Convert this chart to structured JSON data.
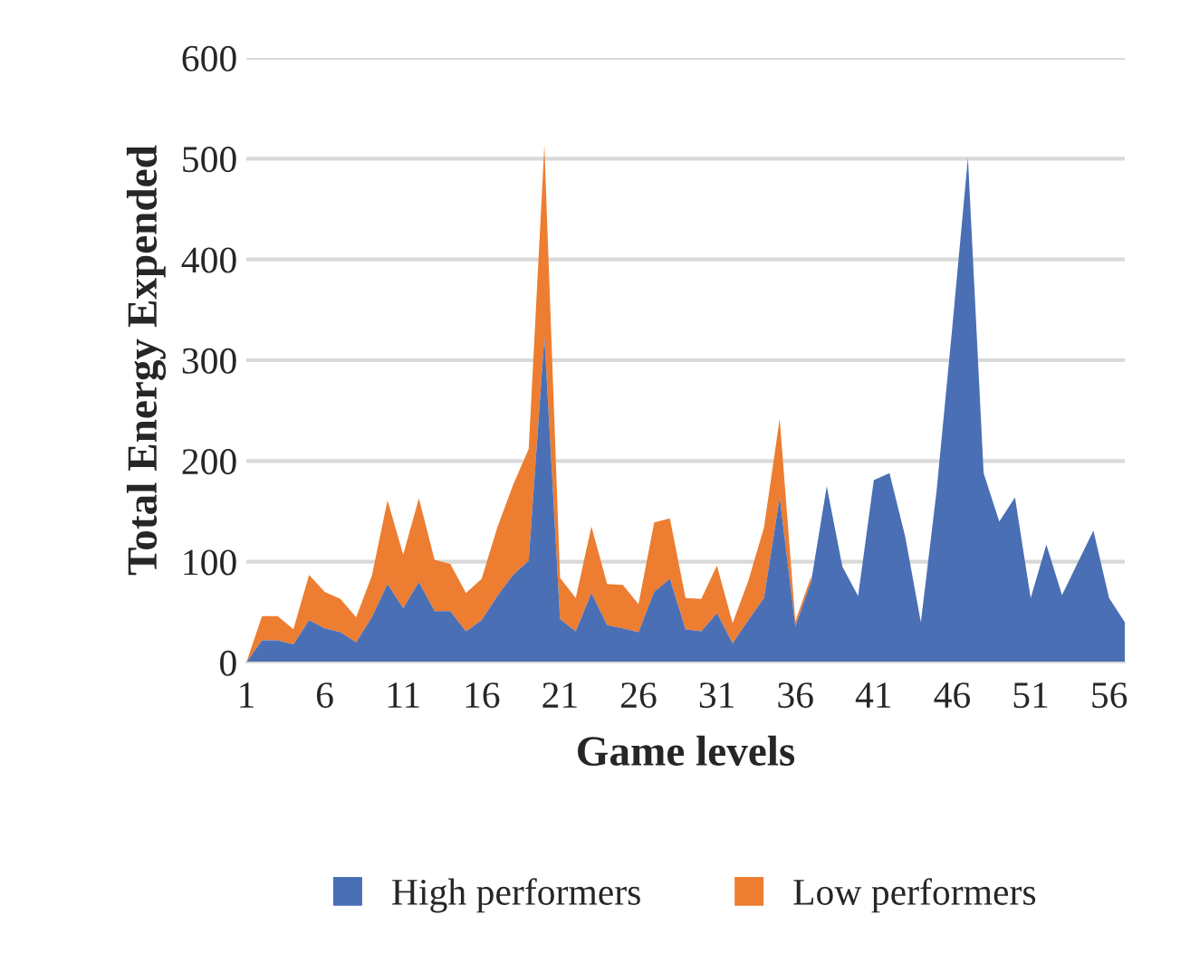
{
  "chart_data": {
    "type": "area",
    "stacked": true,
    "xlabel": "Game levels",
    "ylabel": "Total Energy Expended",
    "categories": [
      "1",
      null,
      null,
      null,
      null,
      "6",
      null,
      null,
      null,
      null,
      "11",
      null,
      null,
      null,
      null,
      "16",
      null,
      null,
      null,
      null,
      "21",
      null,
      null,
      null,
      null,
      "26",
      null,
      null,
      null,
      null,
      "31",
      null,
      null,
      null,
      null,
      "36",
      null,
      null,
      null,
      null,
      "41",
      null,
      null,
      null,
      null,
      "46",
      null,
      null,
      null,
      null,
      "51",
      null,
      null,
      null,
      null,
      "56",
      null
    ],
    "series": [
      {
        "name": "High performers",
        "color": "#4a6fb5",
        "values": [
          0,
          22,
          22,
          18,
          42,
          34,
          30,
          20,
          45,
          78,
          54,
          80,
          51,
          51,
          31,
          42,
          66,
          87,
          101,
          323,
          43,
          31,
          69,
          37,
          34,
          30,
          70,
          83,
          33,
          31,
          49,
          19,
          42,
          64,
          164,
          36,
          80,
          175,
          95,
          66,
          181,
          188,
          125,
          40,
          170,
          332,
          501,
          188,
          140,
          164,
          64,
          117,
          67,
          99,
          131,
          64,
          40
        ]
      },
      {
        "name": "Low performers",
        "color": "#ed7d31",
        "values": [
          0,
          24,
          24,
          15,
          45,
          36,
          33,
          25,
          41,
          83,
          53,
          83,
          51,
          47,
          38,
          41,
          68,
          89,
          111,
          190,
          41,
          33,
          66,
          41,
          43,
          28,
          69,
          60,
          31,
          32,
          47,
          20,
          39,
          70,
          78,
          5,
          5,
          null,
          null,
          null,
          null,
          null,
          null,
          null,
          null,
          null,
          null,
          null,
          null,
          null,
          null,
          null,
          null,
          null,
          null,
          null,
          null
        ]
      }
    ],
    "ylim": [
      0,
      600
    ],
    "yticks": [
      0,
      100,
      200,
      300,
      400,
      500,
      600
    ],
    "grid": "y",
    "legend": "bottom"
  }
}
